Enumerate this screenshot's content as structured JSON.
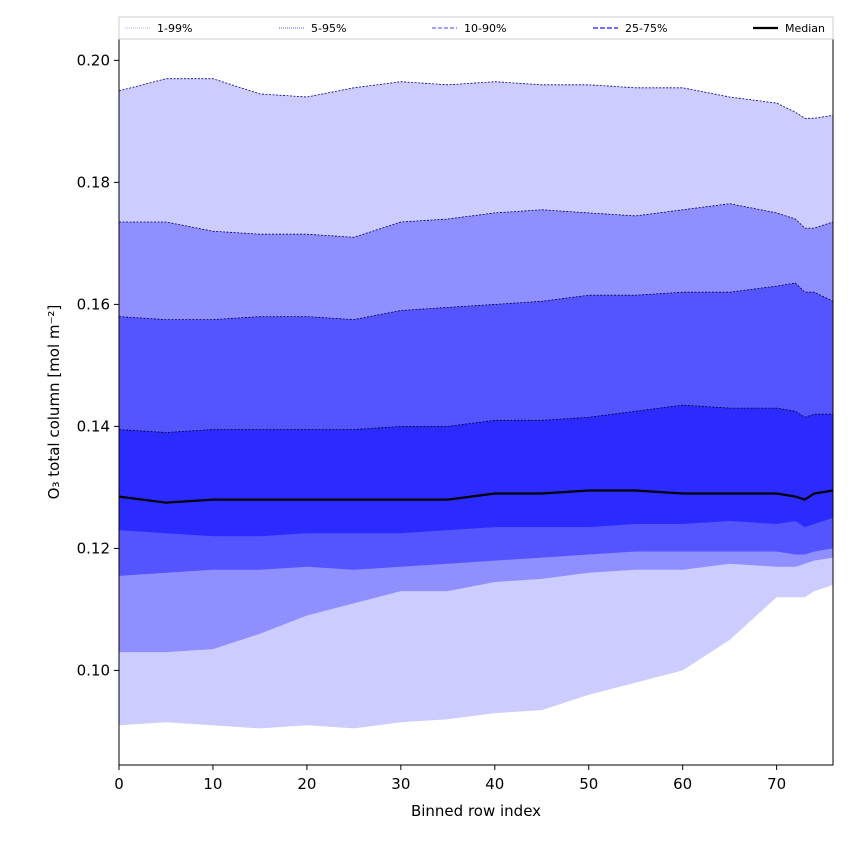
{
  "chart_data": {
    "type": "area",
    "title": "",
    "xlabel": "Binned row index",
    "ylabel": "O₃ total column [mol m⁻²]",
    "xlim": [
      0,
      76
    ],
    "ylim": [
      0.0845,
      0.2035
    ],
    "xticks": [
      0,
      10,
      20,
      30,
      40,
      50,
      60,
      70
    ],
    "yticks": [
      0.1,
      0.12,
      0.14,
      0.16,
      0.18,
      0.2
    ],
    "ytick_labels": [
      "0.10",
      "0.12",
      "0.14",
      "0.16",
      "0.18",
      "0.20"
    ],
    "grid": false,
    "legend_position": "top",
    "x": [
      0,
      5,
      10,
      15,
      20,
      25,
      30,
      35,
      40,
      45,
      50,
      55,
      60,
      65,
      70,
      72,
      73,
      74,
      76
    ],
    "bands": [
      {
        "name": "1-99%",
        "fill": "#ccccff",
        "line_color": "#000080",
        "lower": [
          0.091,
          0.0915,
          0.091,
          0.0905,
          0.091,
          0.0905,
          0.0915,
          0.092,
          0.093,
          0.0935,
          0.096,
          0.098,
          0.1,
          0.105,
          0.112,
          0.112,
          0.112,
          0.113,
          0.114
        ],
        "upper": [
          0.195,
          0.197,
          0.197,
          0.1945,
          0.194,
          0.1955,
          0.1965,
          0.196,
          0.1965,
          0.196,
          0.196,
          0.1955,
          0.1955,
          0.194,
          0.193,
          0.1915,
          0.1905,
          0.1905,
          0.191
        ]
      },
      {
        "name": "5-95%",
        "fill": "#8f8fff",
        "line_color": "#000060",
        "lower": [
          0.103,
          0.103,
          0.1035,
          0.106,
          0.109,
          0.111,
          0.113,
          0.113,
          0.1145,
          0.115,
          0.116,
          0.1165,
          0.1165,
          0.1175,
          0.117,
          0.117,
          0.1175,
          0.118,
          0.1185
        ],
        "upper": [
          0.1735,
          0.1735,
          0.172,
          0.1715,
          0.1715,
          0.171,
          0.1735,
          0.174,
          0.175,
          0.1755,
          0.175,
          0.1745,
          0.1755,
          0.1765,
          0.175,
          0.174,
          0.1725,
          0.1725,
          0.1735
        ]
      },
      {
        "name": "10-90%",
        "fill": "#5555ff",
        "line_color": "#000040",
        "lower": [
          0.1155,
          0.116,
          0.1165,
          0.1165,
          0.117,
          0.1165,
          0.117,
          0.1175,
          0.118,
          0.1185,
          0.119,
          0.1195,
          0.1195,
          0.1195,
          0.1195,
          0.119,
          0.119,
          0.1195,
          0.12
        ],
        "upper": [
          0.158,
          0.1575,
          0.1575,
          0.158,
          0.158,
          0.1575,
          0.159,
          0.1595,
          0.16,
          0.1605,
          0.1615,
          0.1615,
          0.162,
          0.162,
          0.163,
          0.1635,
          0.162,
          0.162,
          0.1605
        ]
      },
      {
        "name": "25-75%",
        "fill": "#2b2bff",
        "line_color": "#000030",
        "lower": [
          0.123,
          0.1225,
          0.122,
          0.122,
          0.1225,
          0.1225,
          0.1225,
          0.123,
          0.1235,
          0.1235,
          0.1235,
          0.124,
          0.124,
          0.1245,
          0.124,
          0.1245,
          0.1235,
          0.124,
          0.125
        ],
        "upper": [
          0.1395,
          0.139,
          0.1395,
          0.1395,
          0.1395,
          0.1395,
          0.14,
          0.14,
          0.141,
          0.141,
          0.1415,
          0.1425,
          0.1435,
          0.143,
          0.143,
          0.1425,
          0.1415,
          0.142,
          0.142
        ]
      }
    ],
    "median": {
      "name": "Median",
      "color": "#000000",
      "values": [
        0.1285,
        0.1275,
        0.128,
        0.128,
        0.128,
        0.128,
        0.128,
        0.128,
        0.129,
        0.129,
        0.1295,
        0.1295,
        0.129,
        0.129,
        0.129,
        0.1285,
        0.128,
        0.129,
        0.1295
      ]
    },
    "legend": [
      {
        "label": "1-99%",
        "color": "#ccccff",
        "dash": "1,1"
      },
      {
        "label": "5-95%",
        "color": "#8f8fff",
        "dash": "1,1"
      },
      {
        "label": "10-90%",
        "color": "#8080ff",
        "dash": "4,2"
      },
      {
        "label": "25-75%",
        "color": "#4040ff",
        "dash": "5,2"
      },
      {
        "label": "Median",
        "color": "#000000",
        "dash": ""
      }
    ]
  }
}
